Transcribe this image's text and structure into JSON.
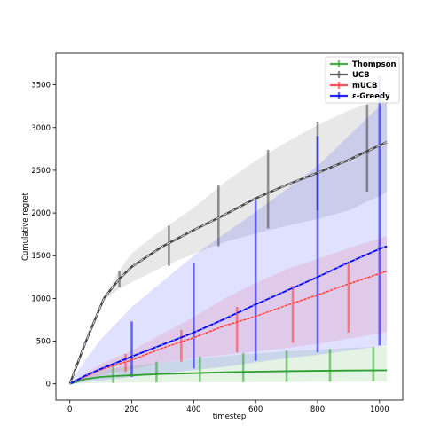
{
  "chart_data": {
    "type": "line",
    "title": "",
    "xlabel": "timestep",
    "ylabel": "Cumulative regret",
    "xlim": [
      -45,
      1075
    ],
    "ylim": [
      -190,
      3870
    ],
    "xticks": [
      0,
      200,
      400,
      600,
      800,
      1000
    ],
    "yticks": [
      0,
      500,
      1000,
      1500,
      2000,
      2500,
      3000,
      3500
    ],
    "grid": false,
    "legend_position": "top-right",
    "series": [
      {
        "name": "Thompson",
        "color": "#2ca02c",
        "line_style": "solid",
        "x": [
          0,
          50,
          100,
          150,
          200,
          300,
          400,
          500,
          600,
          700,
          800,
          900,
          1000,
          1024
        ],
        "y": [
          0,
          55,
          80,
          92,
          100,
          115,
          125,
          135,
          142,
          148,
          152,
          156,
          158,
          158
        ],
        "band_low": [
          0,
          5,
          10,
          12,
          15,
          18,
          20,
          20,
          22,
          22,
          25,
          25,
          28,
          28
        ],
        "band_high": [
          0,
          100,
          150,
          185,
          210,
          250,
          290,
          325,
          355,
          380,
          400,
          420,
          435,
          440
        ],
        "errorbars": [
          {
            "x": 140,
            "low": 10,
            "high": 200
          },
          {
            "x": 280,
            "low": 15,
            "high": 260
          },
          {
            "x": 420,
            "low": 20,
            "high": 320
          },
          {
            "x": 560,
            "low": 20,
            "high": 360
          },
          {
            "x": 700,
            "low": 25,
            "high": 390
          },
          {
            "x": 840,
            "low": 25,
            "high": 410
          },
          {
            "x": 980,
            "low": 30,
            "high": 430
          }
        ]
      },
      {
        "name": "UCB",
        "color": "#444444",
        "line_style": "dashed",
        "x": [
          0,
          50,
          110,
          160,
          200,
          300,
          400,
          500,
          600,
          700,
          800,
          900,
          1000,
          1024
        ],
        "y": [
          0,
          480,
          1000,
          1230,
          1370,
          1610,
          1800,
          1980,
          2170,
          2330,
          2470,
          2620,
          2790,
          2830
        ],
        "band_low": [
          0,
          470,
          990,
          1110,
          1190,
          1370,
          1520,
          1660,
          1760,
          1850,
          1930,
          2030,
          2200,
          2250
        ],
        "band_high": [
          0,
          500,
          1020,
          1330,
          1530,
          1810,
          2060,
          2360,
          2610,
          2830,
          3030,
          3200,
          3330,
          3360
        ],
        "errorbars": [
          {
            "x": 160,
            "low": 1130,
            "high": 1320
          },
          {
            "x": 320,
            "low": 1380,
            "high": 1850
          },
          {
            "x": 480,
            "low": 1610,
            "high": 2330
          },
          {
            "x": 640,
            "low": 1820,
            "high": 2740
          },
          {
            "x": 800,
            "low": 2030,
            "high": 3070
          },
          {
            "x": 960,
            "low": 2250,
            "high": 3270
          }
        ]
      },
      {
        "name": "mUCB",
        "color": "#ff3333",
        "line_style": "dotted",
        "x": [
          0,
          50,
          100,
          200,
          300,
          400,
          500,
          600,
          700,
          800,
          900,
          1000,
          1024
        ],
        "y": [
          0,
          85,
          165,
          280,
          420,
          540,
          680,
          790,
          920,
          1040,
          1170,
          1290,
          1320
        ],
        "band_low": [
          0,
          50,
          100,
          170,
          250,
          300,
          340,
          380,
          420,
          470,
          530,
          590,
          610
        ],
        "band_high": [
          0,
          120,
          230,
          390,
          590,
          780,
          1000,
          1180,
          1340,
          1460,
          1590,
          1700,
          1730
        ],
        "errorbars": [
          {
            "x": 180,
            "low": 140,
            "high": 350
          },
          {
            "x": 360,
            "low": 260,
            "high": 630
          },
          {
            "x": 540,
            "low": 370,
            "high": 900
          },
          {
            "x": 720,
            "low": 480,
            "high": 1150
          },
          {
            "x": 900,
            "low": 600,
            "high": 1420
          }
        ]
      },
      {
        "name": "ε-Greedy",
        "color": "#0000ff",
        "line_style": "solid",
        "x": [
          0,
          50,
          100,
          200,
          300,
          400,
          500,
          600,
          700,
          800,
          900,
          1000,
          1024
        ],
        "y": [
          0,
          95,
          175,
          320,
          460,
          600,
          760,
          930,
          1090,
          1250,
          1420,
          1580,
          1610
        ],
        "band_low": [
          0,
          20,
          40,
          80,
          120,
          160,
          200,
          250,
          300,
          340,
          390,
          440,
          450
        ],
        "band_high": [
          0,
          280,
          520,
          900,
          1200,
          1500,
          1760,
          2010,
          2280,
          2550,
          2900,
          3250,
          3400
        ],
        "errorbars": [
          {
            "x": 200,
            "low": 80,
            "high": 730
          },
          {
            "x": 400,
            "low": 180,
            "high": 1420
          },
          {
            "x": 600,
            "low": 270,
            "high": 2150
          },
          {
            "x": 800,
            "low": 370,
            "high": 2900
          },
          {
            "x": 1000,
            "low": 450,
            "high": 3600
          }
        ]
      }
    ]
  }
}
